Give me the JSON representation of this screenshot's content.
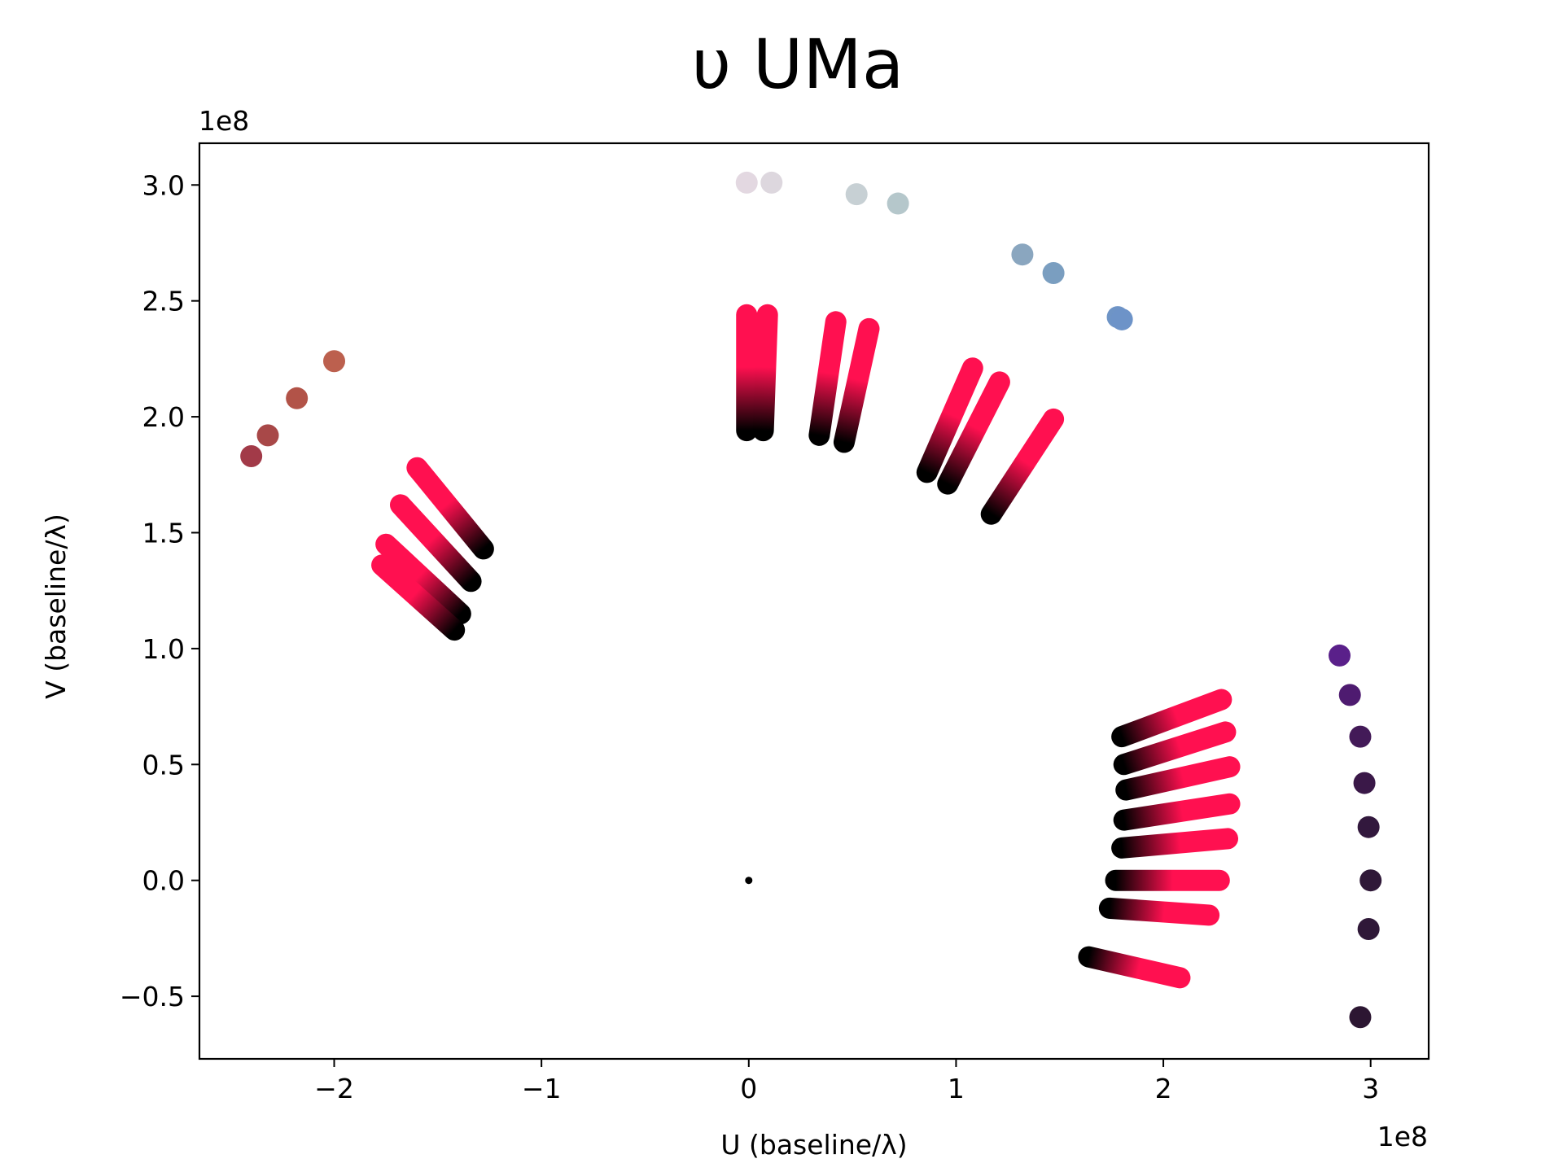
{
  "chart_data": {
    "type": "scatter",
    "title": "υ UMa",
    "xlabel": "U (baseline/λ)",
    "ylabel": "V (baseline/λ)",
    "x_multiplier_label": "1e8",
    "y_multiplier_label": "1e8",
    "xlim": [
      -2.65,
      3.28
    ],
    "ylim": [
      -0.77,
      3.18
    ],
    "xticks": [
      -2,
      -1,
      0,
      1,
      2,
      3
    ],
    "xtick_labels": [
      "−2",
      "−1",
      "0",
      "1",
      "2",
      "3"
    ],
    "yticks": [
      -0.5,
      0.0,
      0.5,
      1.0,
      1.5,
      2.0,
      2.5,
      3.0
    ],
    "ytick_labels": [
      "−0.5",
      "0.0",
      "0.5",
      "1.0",
      "1.5",
      "2.0",
      "2.5",
      "3.0"
    ],
    "grid": false,
    "origin_point": {
      "x": 0.0,
      "y": 0.0,
      "color": "#000000"
    },
    "gradient_colors": {
      "start": "#000000",
      "end": "#ff1050"
    },
    "gradient_segments": [
      {
        "x0": -1.28,
        "y0": 1.43,
        "x1": -1.6,
        "y1": 1.78
      },
      {
        "x0": -1.34,
        "y0": 1.29,
        "x1": -1.68,
        "y1": 1.62
      },
      {
        "x0": -1.39,
        "y0": 1.15,
        "x1": -1.75,
        "y1": 1.45
      },
      {
        "x0": -1.42,
        "y0": 1.08,
        "x1": -1.77,
        "y1": 1.36
      },
      {
        "x0": -0.01,
        "y0": 1.94,
        "x1": -0.01,
        "y1": 2.44
      },
      {
        "x0": 0.07,
        "y0": 1.94,
        "x1": 0.09,
        "y1": 2.44
      },
      {
        "x0": 0.34,
        "y0": 1.92,
        "x1": 0.42,
        "y1": 2.41
      },
      {
        "x0": 0.46,
        "y0": 1.89,
        "x1": 0.58,
        "y1": 2.38
      },
      {
        "x0": 0.86,
        "y0": 1.76,
        "x1": 1.08,
        "y1": 2.21
      },
      {
        "x0": 0.96,
        "y0": 1.71,
        "x1": 1.21,
        "y1": 2.15
      },
      {
        "x0": 1.17,
        "y0": 1.58,
        "x1": 1.47,
        "y1": 1.99
      },
      {
        "x0": 1.8,
        "y0": 0.62,
        "x1": 2.28,
        "y1": 0.78
      },
      {
        "x0": 1.81,
        "y0": 0.5,
        "x1": 2.3,
        "y1": 0.64
      },
      {
        "x0": 1.82,
        "y0": 0.39,
        "x1": 2.32,
        "y1": 0.49
      },
      {
        "x0": 1.81,
        "y0": 0.26,
        "x1": 2.32,
        "y1": 0.33
      },
      {
        "x0": 1.8,
        "y0": 0.14,
        "x1": 2.31,
        "y1": 0.18
      },
      {
        "x0": 1.77,
        "y0": 0.0,
        "x1": 2.27,
        "y1": 0.0
      },
      {
        "x0": 1.74,
        "y0": -0.12,
        "x1": 2.22,
        "y1": -0.15
      },
      {
        "x0": 1.64,
        "y0": -0.33,
        "x1": 2.08,
        "y1": -0.42
      }
    ],
    "series": [
      {
        "x": [
          -2.4,
          -2.32,
          -2.18,
          -2.0
        ],
        "y": [
          1.83,
          1.92,
          2.08,
          2.24
        ],
        "colors": [
          "#a23a48",
          "#a84848",
          "#b25348",
          "#bc604e"
        ]
      },
      {
        "x": [
          -0.01,
          0.11,
          0.52,
          0.72
        ],
        "y": [
          3.01,
          3.01,
          2.96,
          2.92
        ],
        "colors": [
          "#e3d8e1",
          "#ddd7de",
          "#c7d0d4",
          "#b5c7cb"
        ]
      },
      {
        "x": [
          1.32,
          1.47,
          1.78,
          1.8
        ],
        "y": [
          2.7,
          2.62,
          2.43,
          2.42
        ],
        "colors": [
          "#8aa6bf",
          "#7a9ec0",
          "#6e94c6",
          "#6d93c8"
        ]
      },
      {
        "x": [
          2.85,
          2.9,
          2.95,
          2.97,
          2.99,
          3.0,
          2.99,
          2.95
        ],
        "y": [
          0.97,
          0.8,
          0.62,
          0.42,
          0.23,
          0.0,
          -0.21,
          -0.59
        ],
        "colors": [
          "#5a208a",
          "#4e1b70",
          "#431a58",
          "#3a1848",
          "#32183d",
          "#2f1838",
          "#2f1838",
          "#2c1632"
        ]
      }
    ]
  }
}
